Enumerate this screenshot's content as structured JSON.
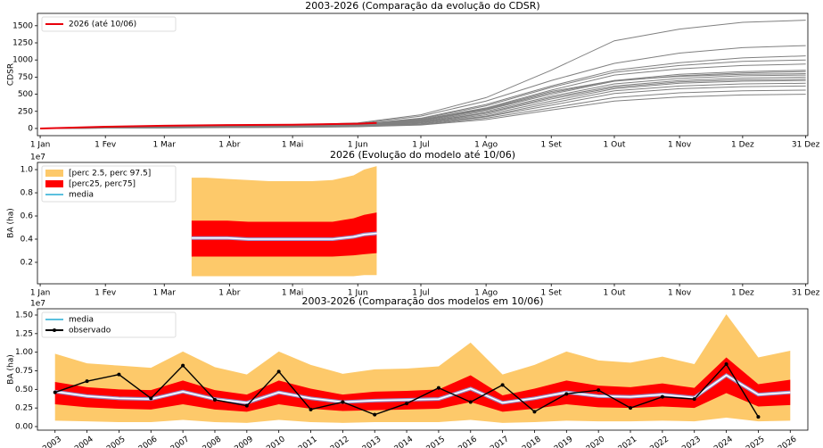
{
  "chart_data": [
    {
      "type": "line",
      "title": "2003-2026 (Comparação da evolução do CDSR)",
      "ylabel": "CDSR",
      "x": [
        1,
        32,
        60,
        91,
        121,
        152,
        182,
        213,
        244,
        274,
        305,
        335,
        365
      ],
      "xlim": [
        -0.3,
        366
      ],
      "ylim": [
        -105,
        1680
      ],
      "xticks": [
        {
          "value": 1,
          "label": "1 Jan"
        },
        {
          "value": 32,
          "label": "1 Fev"
        },
        {
          "value": 60,
          "label": "1 Mar"
        },
        {
          "value": 91,
          "label": "1 Abr"
        },
        {
          "value": 121,
          "label": "1 Mai"
        },
        {
          "value": 152,
          "label": "1 Jun"
        },
        {
          "value": 182,
          "label": "1 Jul"
        },
        {
          "value": 213,
          "label": "1 Ago"
        },
        {
          "value": 244,
          "label": "1 Set"
        },
        {
          "value": 274,
          "label": "1 Out"
        },
        {
          "value": 305,
          "label": "1 Nov"
        },
        {
          "value": 335,
          "label": "1 Dez"
        },
        {
          "value": 365,
          "label": "31 Dez"
        }
      ],
      "yticks": [
        0,
        250,
        500,
        750,
        1000,
        1250,
        1500
      ],
      "legend": "upper left",
      "series": [
        {
          "color": "#808080",
          "values": [
            0,
            20,
            30,
            40,
            50,
            80,
            200,
            450,
            850,
            1280,
            1450,
            1550,
            1580
          ]
        },
        {
          "color": "#808080",
          "values": [
            0,
            15,
            25,
            35,
            45,
            70,
            180,
            400,
            700,
            950,
            1100,
            1180,
            1210
          ]
        },
        {
          "color": "#808080",
          "values": [
            0,
            18,
            28,
            38,
            48,
            60,
            150,
            350,
            620,
            850,
            960,
            1030,
            1060
          ]
        },
        {
          "color": "#808080",
          "values": [
            0,
            15,
            25,
            30,
            40,
            55,
            140,
            330,
            600,
            820,
            920,
            980,
            1000
          ]
        },
        {
          "color": "#808080",
          "values": [
            0,
            12,
            20,
            28,
            36,
            50,
            130,
            300,
            560,
            780,
            870,
            920,
            940
          ]
        },
        {
          "color": "#808080",
          "values": [
            0,
            10,
            18,
            25,
            33,
            45,
            120,
            280,
            520,
            700,
            790,
            830,
            850
          ]
        },
        {
          "color": "#808080",
          "values": [
            0,
            10,
            18,
            25,
            32,
            45,
            110,
            270,
            500,
            690,
            770,
            810,
            830
          ]
        },
        {
          "color": "#808080",
          "values": [
            0,
            12,
            20,
            27,
            35,
            48,
            120,
            290,
            540,
            700,
            760,
            790,
            800
          ]
        },
        {
          "color": "#808080",
          "values": [
            0,
            10,
            17,
            24,
            30,
            42,
            100,
            250,
            470,
            650,
            730,
            770,
            780
          ]
        },
        {
          "color": "#808080",
          "values": [
            0,
            8,
            15,
            22,
            28,
            40,
            90,
            230,
            450,
            620,
            700,
            735,
            750
          ]
        },
        {
          "color": "#808080",
          "values": [
            0,
            8,
            14,
            20,
            26,
            38,
            85,
            220,
            430,
            600,
            680,
            710,
            720
          ]
        },
        {
          "color": "#808080",
          "values": [
            0,
            7,
            12,
            18,
            24,
            35,
            80,
            200,
            400,
            580,
            660,
            690,
            700
          ]
        },
        {
          "color": "#808080",
          "values": [
            0,
            6,
            11,
            16,
            22,
            32,
            70,
            180,
            370,
            550,
            620,
            650,
            660
          ]
        },
        {
          "color": "#808080",
          "values": [
            0,
            6,
            10,
            15,
            20,
            30,
            65,
            170,
            340,
            510,
            580,
            610,
            620
          ]
        },
        {
          "color": "#808080",
          "values": [
            0,
            5,
            9,
            14,
            18,
            28,
            55,
            150,
            300,
            450,
            520,
            550,
            560
          ]
        },
        {
          "color": "#808080",
          "values": [
            0,
            5,
            8,
            12,
            16,
            25,
            50,
            130,
            270,
            400,
            460,
            490,
            500
          ]
        },
        {
          "name": "2026 (até 10/06)",
          "color": "#e8000b",
          "x": [
            1,
            32,
            60,
            91,
            121,
            152,
            161
          ],
          "values": [
            0,
            25,
            40,
            50,
            55,
            70,
            80
          ]
        }
      ]
    },
    {
      "type": "band",
      "title": "2026 (Evolução do modelo até 10/06)",
      "ylabel": "BA (ha)",
      "offset_label": "1e7",
      "x": [
        73,
        80,
        90,
        100,
        110,
        120,
        130,
        140,
        150,
        155,
        161
      ],
      "xlim": [
        -0.3,
        366
      ],
      "ylim": [
        0.015,
        1.062
      ],
      "xticks": [
        {
          "value": 1,
          "label": "1 Jan"
        },
        {
          "value": 32,
          "label": "1 Fev"
        },
        {
          "value": 60,
          "label": "1 Mar"
        },
        {
          "value": 91,
          "label": "1 Abr"
        },
        {
          "value": 121,
          "label": "1 Mai"
        },
        {
          "value": 152,
          "label": "1 Jun"
        },
        {
          "value": 182,
          "label": "1 Jul"
        },
        {
          "value": 213,
          "label": "1 Ago"
        },
        {
          "value": 244,
          "label": "1 Set"
        },
        {
          "value": 274,
          "label": "1 Out"
        },
        {
          "value": 305,
          "label": "1 Nov"
        },
        {
          "value": 335,
          "label": "1 Dez"
        },
        {
          "value": 365,
          "label": "31 Dez"
        }
      ],
      "yticks": [
        0.2,
        0.4,
        0.6,
        0.8,
        {
          "value": 1,
          "label": "1.0"
        }
      ],
      "legend": "upper left",
      "bands": [
        {
          "name": "[perc 2.5, perc 97.5]",
          "color": "#fdc96a",
          "lower": [
            0.08,
            0.08,
            0.08,
            0.08,
            0.08,
            0.08,
            0.08,
            0.08,
            0.08,
            0.09,
            0.09
          ],
          "upper": [
            0.93,
            0.93,
            0.92,
            0.91,
            0.9,
            0.9,
            0.9,
            0.91,
            0.95,
            1.0,
            1.03
          ]
        },
        {
          "name": "[perc25, perc75]",
          "color": "#ff0000",
          "lower": [
            0.25,
            0.25,
            0.25,
            0.25,
            0.25,
            0.25,
            0.25,
            0.25,
            0.26,
            0.27,
            0.28
          ],
          "upper": [
            0.56,
            0.56,
            0.56,
            0.55,
            0.55,
            0.55,
            0.55,
            0.55,
            0.58,
            0.61,
            0.63
          ]
        }
      ],
      "series": [
        {
          "name": "media",
          "color": "#5bc0de",
          "values": [
            0.41,
            0.41,
            0.41,
            0.4,
            0.4,
            0.4,
            0.4,
            0.4,
            0.42,
            0.44,
            0.45
          ]
        }
      ]
    },
    {
      "type": "band",
      "title": "2003-2026 (Comparação dos modelos em 10/06)",
      "ylabel": "BA (ha)",
      "offset_label": "1e7",
      "categories": [
        "2003",
        "2004",
        "2005",
        "2006",
        "2007",
        "2008",
        "2009",
        "2010",
        "2011",
        "2012",
        "2013",
        "2014",
        "2015",
        "2016",
        "2017",
        "2018",
        "2019",
        "2020",
        "2021",
        "2022",
        "2023",
        "2024",
        "2025",
        "2026"
      ],
      "ylim": [
        -0.048,
        1.584
      ],
      "yticks": [
        {
          "value": 0,
          "label": "0.00"
        },
        {
          "value": 0.25,
          "label": "0.25"
        },
        {
          "value": 0.5,
          "label": "0.50"
        },
        {
          "value": 0.75,
          "label": "0.75"
        },
        {
          "value": 1,
          "label": "1.00"
        },
        {
          "value": 1.25,
          "label": "1.25"
        },
        {
          "value": 1.5,
          "label": "1.50"
        }
      ],
      "legend": "upper left",
      "bands": [
        {
          "color": "#fdc96a",
          "lower": [
            0.08,
            0.07,
            0.06,
            0.06,
            0.09,
            0.06,
            0.05,
            0.09,
            0.06,
            0.05,
            0.06,
            0.06,
            0.06,
            0.09,
            0.05,
            0.06,
            0.08,
            0.07,
            0.07,
            0.08,
            0.07,
            0.12,
            0.07,
            0.08
          ],
          "upper": [
            0.98,
            0.85,
            0.82,
            0.79,
            1.01,
            0.8,
            0.7,
            1.01,
            0.83,
            0.71,
            0.77,
            0.78,
            0.81,
            1.13,
            0.7,
            0.83,
            1.01,
            0.89,
            0.86,
            0.94,
            0.84,
            1.51,
            0.93,
            1.02
          ]
        },
        {
          "color": "#ff0000",
          "lower": [
            0.3,
            0.26,
            0.24,
            0.23,
            0.3,
            0.23,
            0.2,
            0.3,
            0.24,
            0.21,
            0.22,
            0.23,
            0.24,
            0.33,
            0.2,
            0.24,
            0.3,
            0.26,
            0.25,
            0.27,
            0.25,
            0.45,
            0.27,
            0.29
          ],
          "upper": [
            0.6,
            0.53,
            0.5,
            0.49,
            0.62,
            0.49,
            0.43,
            0.62,
            0.51,
            0.43,
            0.47,
            0.48,
            0.5,
            0.69,
            0.42,
            0.51,
            0.62,
            0.55,
            0.53,
            0.58,
            0.52,
            0.93,
            0.57,
            0.63
          ]
        }
      ],
      "series": [
        {
          "name": "media",
          "color": "#5bc0de",
          "values": [
            0.47,
            0.41,
            0.38,
            0.37,
            0.47,
            0.37,
            0.32,
            0.46,
            0.38,
            0.33,
            0.35,
            0.36,
            0.37,
            0.51,
            0.32,
            0.38,
            0.46,
            0.41,
            0.4,
            0.43,
            0.39,
            0.69,
            0.43,
            0.46
          ]
        },
        {
          "name": "observado",
          "color": "#000000",
          "marker": "o",
          "values": [
            0.46,
            0.61,
            0.7,
            0.38,
            0.82,
            0.36,
            0.28,
            0.74,
            0.23,
            0.33,
            0.16,
            0.31,
            0.52,
            0.33,
            0.56,
            0.2,
            0.44,
            0.49,
            0.25,
            0.4,
            0.37,
            0.84,
            0.13,
            null
          ]
        }
      ]
    }
  ]
}
